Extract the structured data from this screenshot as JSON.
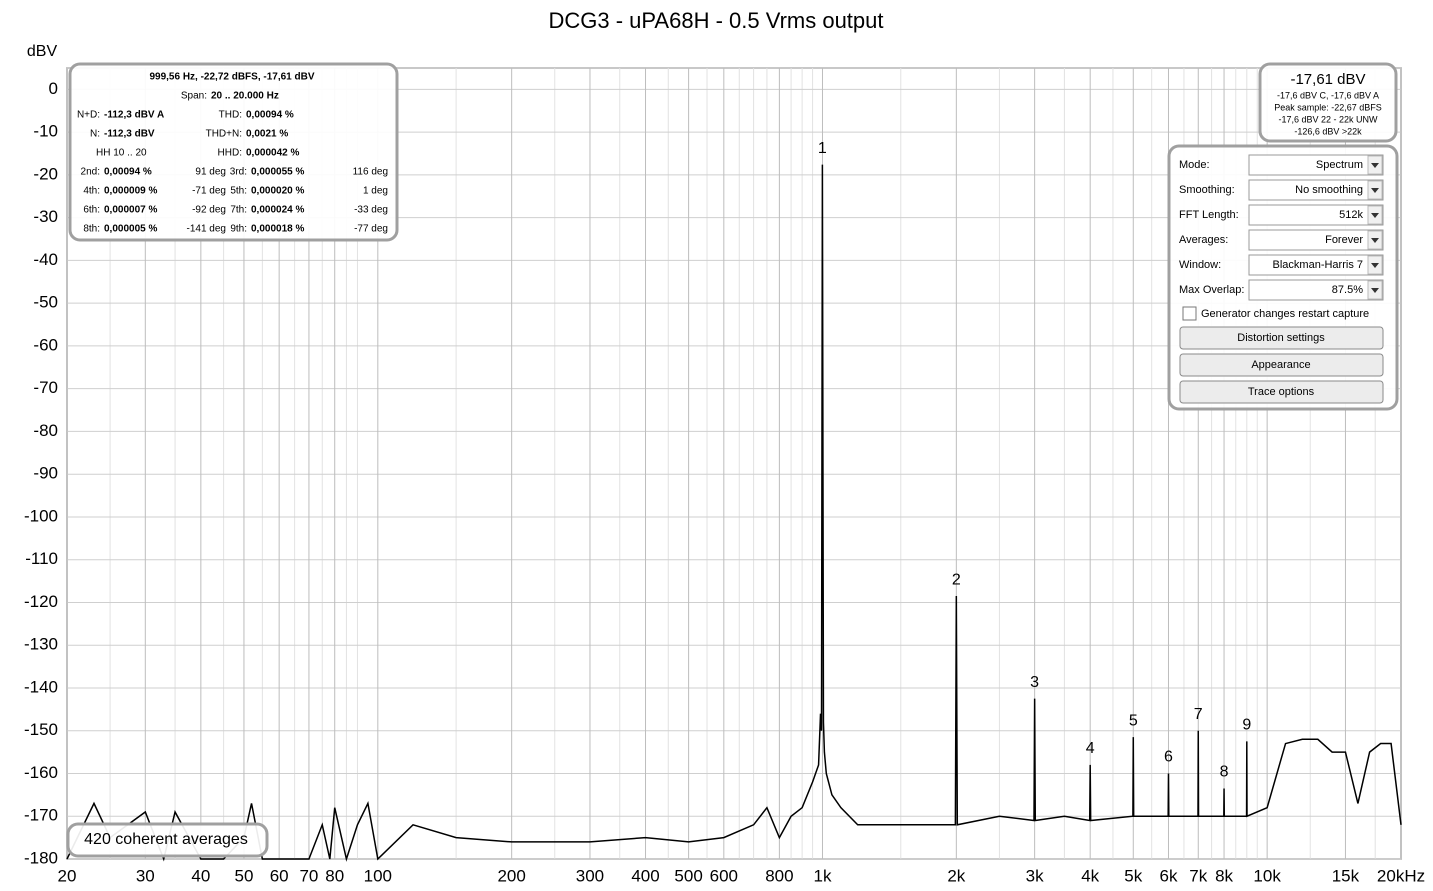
{
  "chart_data": {
    "type": "line",
    "title": "DCG3 - uPA68H - 0.5 Vrms output",
    "y_label": "dBV",
    "log_x": true,
    "grid": true,
    "xlim": [
      20,
      20000
    ],
    "ylim": [
      -180,
      5
    ],
    "xticks": [
      20,
      30,
      40,
      50,
      60,
      70,
      80,
      100,
      200,
      300,
      400,
      500,
      600,
      800,
      {
        "value": 1000,
        "label": "1k"
      },
      {
        "value": 2000,
        "label": "2k"
      },
      {
        "value": 3000,
        "label": "3k"
      },
      {
        "value": 4000,
        "label": "4k"
      },
      {
        "value": 5000,
        "label": "5k"
      },
      {
        "value": 6000,
        "label": "6k"
      },
      {
        "value": 7000,
        "label": "7k"
      },
      {
        "value": 8000,
        "label": "8k"
      },
      {
        "value": 10000,
        "label": "10k"
      },
      {
        "value": 15000,
        "label": "15k"
      },
      {
        "value": 20000,
        "label": "20kHz"
      }
    ],
    "x_minor_grid": [
      25,
      35,
      45,
      55,
      65,
      75,
      85,
      90,
      150,
      250,
      350,
      450,
      550,
      650,
      700,
      750,
      850,
      900,
      950,
      1500,
      2500,
      3500,
      4500,
      5500,
      6500,
      7500,
      8500,
      9000,
      9500,
      12500,
      17500
    ],
    "yticks": [
      0,
      -10,
      -20,
      -30,
      -40,
      -50,
      -60,
      -70,
      -80,
      -90,
      -100,
      -110,
      -120,
      -130,
      -140,
      -150,
      -160,
      -170,
      -180
    ],
    "x": [
      20,
      23,
      25,
      30,
      33,
      35,
      40,
      45,
      50,
      52,
      55,
      58,
      62,
      70,
      75,
      78,
      80,
      85,
      90,
      95,
      100,
      120,
      150,
      200,
      300,
      400,
      500,
      600,
      700,
      750,
      800,
      850,
      900,
      950,
      980,
      990,
      995,
      999.56,
      1005,
      1010,
      1020,
      1050,
      1100,
      1200,
      1500,
      1800,
      1990,
      2000,
      2010,
      2500,
      2990,
      3000,
      3010,
      3500,
      3990,
      4000,
      4010,
      4990,
      5000,
      5010,
      5990,
      6000,
      6010,
      6990,
      7000,
      7010,
      7990,
      8000,
      8010,
      8990,
      9000,
      9010,
      10000,
      11000,
      12000,
      13000,
      14000,
      15000,
      16000,
      17000,
      18000,
      19000,
      20000
    ],
    "series": [
      {
        "color": "#000000",
        "values": [
          -180,
          -167,
          -175,
          -169,
          -180,
          -169,
          -180,
          -180,
          -175,
          -167,
          -180,
          -180,
          -180,
          -180,
          -172,
          -180,
          -168,
          -180,
          -172,
          -167,
          -180,
          -172,
          -175,
          -176,
          -176,
          -175,
          -176,
          -175,
          -172,
          -168,
          -175,
          -170,
          -168,
          -162,
          -158,
          -146,
          -150,
          -17.61,
          -148,
          -155,
          -160,
          -165,
          -168,
          -172,
          -172,
          -172,
          -172,
          -118.5,
          -172,
          -170,
          -171,
          -142.5,
          -171,
          -170,
          -171,
          -158,
          -171,
          -170,
          -151.5,
          -170,
          -170,
          -160,
          -170,
          -170,
          -150,
          -170,
          -170,
          -163.5,
          -170,
          -170,
          -152.5,
          -170,
          -168,
          -153,
          -152,
          -152,
          -155,
          -155,
          -167,
          -155,
          -153,
          -153,
          -172
        ]
      }
    ],
    "annotations": [
      {
        "text": "1",
        "x": 999.56,
        "y": -17.61
      },
      {
        "text": "2",
        "x": 2000,
        "y": -118.5
      },
      {
        "text": "3",
        "x": 3000,
        "y": -142.5
      },
      {
        "text": "4",
        "x": 4000,
        "y": -158
      },
      {
        "text": "5",
        "x": 5000,
        "y": -151.5
      },
      {
        "text": "6",
        "x": 6000,
        "y": -160
      },
      {
        "text": "7",
        "x": 7000,
        "y": -150
      },
      {
        "text": "8",
        "x": 8000,
        "y": -163.5
      },
      {
        "text": "9",
        "x": 9000,
        "y": -152.5
      }
    ]
  },
  "info_panel": {
    "header": "999,56 Hz, -22,72 dBFS, -17,61 dBV",
    "span_label": "Span:",
    "span": "20 .. 20.000 Hz",
    "summary": [
      {
        "label": "N+D:",
        "value": "-112,3 dBV A"
      },
      {
        "label": "THD:",
        "value": "0,00094 %"
      },
      {
        "label": "N:",
        "value": "-112,3 dBV"
      },
      {
        "label": "THD+N:",
        "value": "0,0021 %"
      },
      {
        "label": "HH 10 .. 20"
      },
      {
        "label": "HHD:",
        "value": "0,000042 %"
      }
    ],
    "harmonics": [
      {
        "label": "2nd:",
        "value": "0,00094 %",
        "phase": "91 deg"
      },
      {
        "label": "3rd:",
        "value": "0,000055 %",
        "phase": "116 deg"
      },
      {
        "label": "4th:",
        "value": "0,000009 %",
        "phase": "-71 deg"
      },
      {
        "label": "5th:",
        "value": "0,000020 %",
        "phase": "1 deg"
      },
      {
        "label": "6th:",
        "value": "0,000007 %",
        "phase": "-92 deg"
      },
      {
        "label": "7th:",
        "value": "0,000024 %",
        "phase": "-33 deg"
      },
      {
        "label": "8th:",
        "value": "0,000005 %",
        "phase": "-141 deg"
      },
      {
        "label": "9th:",
        "value": "0,000018 %",
        "phase": "-77 deg"
      }
    ]
  },
  "level_panel": {
    "title": "-17,61 dBV",
    "lines": [
      "-17,6 dBV C, -17,6 dBV A",
      "Peak sample: -22,67 dBFS",
      "-17,6 dBV 22 - 22k UNW",
      "-126,6 dBV >22k"
    ]
  },
  "controls": {
    "dropdowns": [
      {
        "label": "Mode:",
        "value": "Spectrum"
      },
      {
        "label": "Smoothing:",
        "value": "No  smoothing"
      },
      {
        "label": "FFT Length:",
        "value": "512k"
      },
      {
        "label": "Averages:",
        "value": "Forever"
      },
      {
        "label": "Window:",
        "value": "Blackman-Harris 7"
      },
      {
        "label": "Max Overlap:",
        "value": "87.5%"
      }
    ],
    "checkbox": "Generator changes restart capture",
    "buttons": [
      "Distortion settings",
      "Appearance",
      "Trace options"
    ]
  },
  "averages_badge": "420 coherent averages"
}
